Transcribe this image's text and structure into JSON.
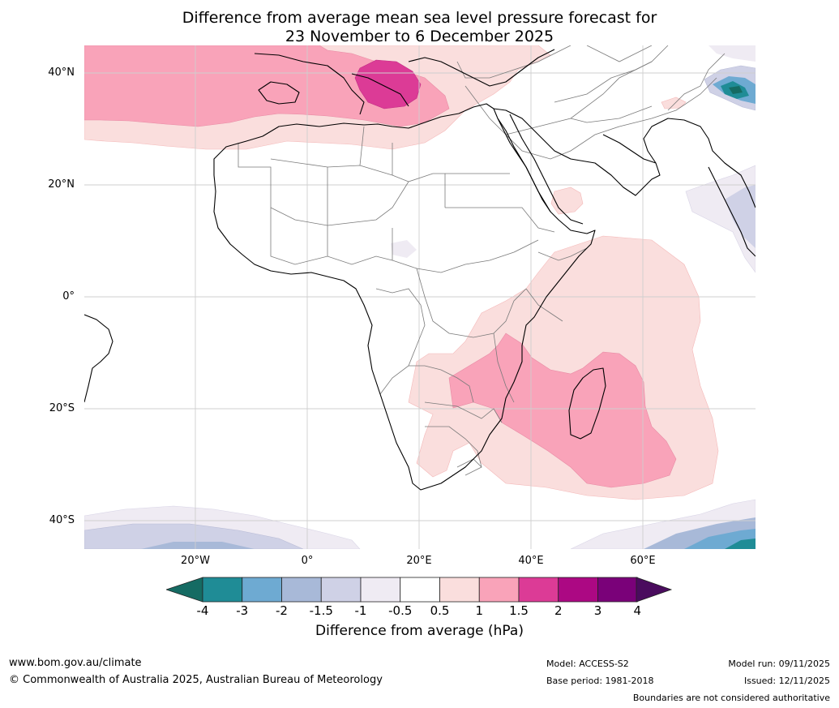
{
  "title_line1": "Difference from average mean sea level pressure forecast for",
  "title_line2": "23 November to 6 December 2025",
  "lat_labels": [
    "40°N",
    "20°N",
    "0°",
    "20°S",
    "40°S"
  ],
  "lon_labels": [
    "20°W",
    "0°",
    "20°E",
    "40°E",
    "60°E"
  ],
  "colorbar": {
    "title": "Difference from average (hPa)",
    "ticks": [
      "-4",
      "-3",
      "-2",
      "-1.5",
      "-1",
      "-0.5",
      "0.5",
      "1",
      "1.5",
      "2",
      "3",
      "4"
    ],
    "colors": [
      "#156b63",
      "#1f8c96",
      "#6eaad2",
      "#a8b9d8",
      "#cfd1e6",
      "#efebf3",
      "#ffffff",
      "#fadedd",
      "#f9a3b9",
      "#dc3b96",
      "#ac0883",
      "#7a0179",
      "#4a0c5e"
    ]
  },
  "footer": {
    "website": "www.bom.gov.au/climate",
    "copyright": "© Commonwealth of Australia 2025, Australian Bureau of Meteorology",
    "model": "Model: ACCESS-S2",
    "base_period": "Base period: 1981-2018",
    "model_run": "Model run: 09/11/2025",
    "issued": "Issued: 12/11/2025",
    "disclaimer": "Boundaries are not considered authoritative"
  }
}
